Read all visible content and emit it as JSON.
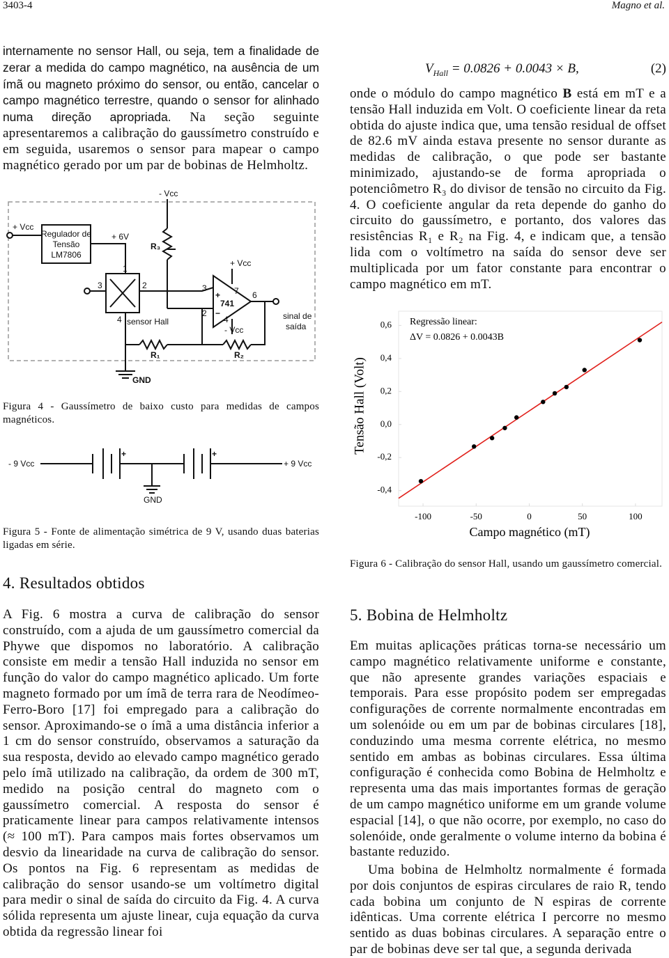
{
  "header": {
    "page": "3403-4",
    "authors": "Magno et al."
  },
  "left": {
    "paragraph1": {
      "segments": [
        "internamente no sensor Hall, ou seja, tem a finalidade de zerar a medida do campo magnético, na ausência de um ímã ou magneto próximo do sensor, ou então, cancelar o campo magnético terrestre, quando o sensor for alinhado numa direção apropriada.",
        " Na seção seguinte apresentaremos a calibração do gaussímetro construído e em seguida, usaremos o sensor para mapear o campo magnético gerado por um par de bobinas de Helmholtz."
      ]
    },
    "section4": {
      "heading": "4. Resultados obtidos",
      "paragraph": "A Fig. 6 mostra a curva de calibração do sensor construído, com a ajuda de um gaussímetro comercial da Phywe que dispomos no laboratório. A calibração consiste em medir a tensão Hall induzida no sensor em função do valor do campo magnético aplicado. Um forte magneto formado por um ímã de terra rara de Neodímeo-Ferro-Boro [17] foi empregado para a calibração do sensor. Aproximando-se o ímã a uma distância inferior a 1 cm do sensor construído, observamos a saturação da sua resposta, devido ao elevado campo magnético gerado pelo ímã utilizado na calibração, da ordem de 300 mT, medido na posição central do magneto com o gaussímetro comercial. A resposta do sensor é praticamente linear para campos relativamente intensos (≈ 100 mT). Para campos mais fortes observamos um desvio da linearidade na curva de calibração do sensor. Os pontos na Fig. 6 representam as medidas de calibração do sensor usando-se um voltímetro digital para medir o sinal de saída do circuito da Fig. 4. A curva sólida representa um ajuste linear, cuja equação da curva obtida da regressão linear foi"
    }
  },
  "figure4": {
    "labels": [
      "- Vcc",
      "+ Vcc",
      "Regulador de",
      "Tensão",
      "LM7806",
      "+ 6V",
      "R₃",
      "1",
      "3",
      "2",
      "4",
      "sensor Hall",
      "+ Vcc",
      "7",
      "741",
      "6",
      "- Vcc",
      "4",
      "3",
      "2",
      "sinal de",
      "saída",
      "R₁",
      "R₂",
      "GND",
      "+",
      "−"
    ],
    "caption": "Figura 4 - Gaussímetro de baixo custo para medidas de campos magnéticos."
  },
  "figure5": {
    "labels": [
      "- 9 Vcc",
      "+",
      "+",
      "+ 9 Vcc",
      "GND"
    ],
    "caption": "Figura 5 - Fonte de alimentação simétrica de 9 V, usando duas baterias ligadas em série."
  },
  "equation": {
    "lhs": "V",
    "lhs_sub": "Hall",
    "rhs": "= 0.0826 + 0.0043 × B,",
    "number": "(2)"
  },
  "right": {
    "paragraph1": {
      "segments": [
        "onde o módulo do campo magnético ",
        "B",
        " está em mT e a tensão Hall induzida em Volt. O coeficiente linear da reta obtida do ajuste indica que, uma tensão residual de offset de 82.6 mV ainda estava presente no sensor durante as medidas de calibração, o que pode ser bastante minimizado, ajustando-se de forma apropriada o potenciômetro R₃ do divisor de tensão no circuito da Fig. 4. O coeficiente angular da reta depende do ganho do circuito do gaussímetro, e portanto, dos valores das resistências R₁ e R₂ na Fig. 4, e indicam que, a tensão lida com o voltímetro na saída do sensor deve ser multiplicada por um fator constante para encontrar o campo magnético em mT."
      ]
    },
    "section5": {
      "heading": "5. Bobina de Helmholtz",
      "paragraphs": [
        "Em muitas aplicações práticas torna-se necessário um campo magnético relativamente uniforme e constante, que não apresente grandes variações espaciais e temporais. Para esse propósito podem ser empregadas configurações de corrente normalmente encontradas em um solenóide ou em um par de bobinas circulares [18], conduzindo uma mesma corrente elétrica, no mesmo sentido em ambas as bobinas circulares. Essa última configuração é conhecida como Bobina de Helmholtz e representa uma das mais importantes formas de geração de um campo magnético uniforme em um grande volume espacial [14], o que não ocorre, por exemplo, no caso do solenóide, onde geralmente o volume interno da bobina é bastante reduzido.",
        "Uma bobina de Helmholtz normalmente é formada por dois conjuntos de espiras circulares de raio R, tendo cada bobina um conjunto de N espiras de corrente idênticas. Uma corrente elétrica I percorre no mesmo sentido as duas bobinas circulares. A separação entre o par de bobinas deve ser tal que, a segunda derivada"
      ]
    }
  },
  "figure6": {
    "chart": {
      "type": "scatter",
      "x": [
        -102,
        -52,
        -35,
        -23,
        -12,
        13,
        24,
        35,
        52,
        104
      ],
      "y": [
        -0.343,
        -0.133,
        -0.082,
        -0.021,
        0.043,
        0.137,
        0.189,
        0.227,
        0.33,
        0.511
      ],
      "point_color": "#000000",
      "line_color": "#e0201b",
      "fit": {
        "intercept": 0.0826,
        "slope": 0.0043
      },
      "legend": [
        "Regressão linear:",
        "ΔV = 0.0826 + 0.0043B"
      ],
      "xlabel": "Campo magnético (mT)",
      "ylabel": "Tensão Hall (Volt)",
      "xlim": [
        -123,
        125
      ],
      "ylim": [
        -0.494,
        0.686
      ],
      "xticks": [
        -100,
        -50,
        0,
        50,
        100
      ],
      "yticks": [
        {
          "value": -0.4,
          "label": "-0,4"
        },
        {
          "value": -0.2,
          "label": "-0,2"
        },
        {
          "value": 0,
          "label": "0,0"
        },
        {
          "value": 0.2,
          "label": "0,2"
        },
        {
          "value": 0.4,
          "label": "0,4"
        },
        {
          "value": 0.6,
          "label": "0,6"
        }
      ]
    },
    "caption": "Figura 6 - Calibração do sensor Hall, usando um gaussímetro comercial."
  }
}
